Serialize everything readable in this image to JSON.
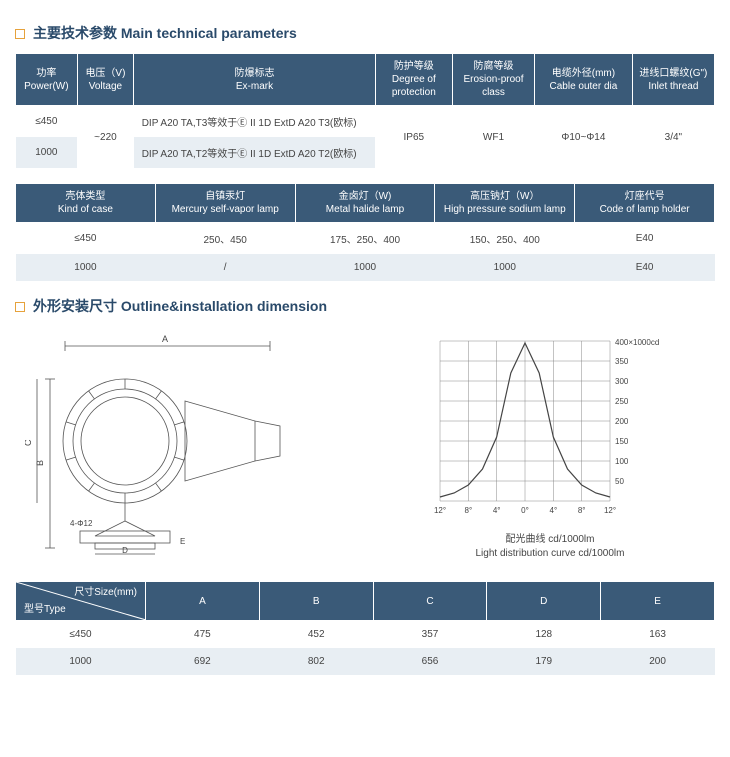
{
  "section1_title": "主要技术参数 Main technical parameters",
  "section2_title": "外形安装尺寸 Outline&installation dimension",
  "table1": {
    "headers": [
      "功率\nPower(W)",
      "电压（V)\nVoltage",
      "防爆标志\nEx-mark",
      "防护等级\nDegree of protection",
      "防腐等级\nErosion-proof class",
      "电缆外径(mm)\nCable outer dia",
      "进线口螺纹(G\")\nInlet thread"
    ],
    "rows": [
      [
        "≤450",
        "~220",
        "DIP A20 TA,T3等效于Ⓔ II 1D ExtD A20 T3(欧标)",
        "IP65",
        "WF1",
        "Φ10~Φ14",
        "3/4\""
      ],
      [
        "1000",
        "",
        "DIP A20 TA,T2等效于Ⓔ II 1D ExtD A20 T2(欧标)",
        "",
        "",
        "",
        ""
      ]
    ]
  },
  "table2": {
    "headers": [
      "壳体类型\nKind of case",
      "自镇汞灯\nMercury self-vapor lamp",
      "金卤灯（W)\nMetal halide lamp",
      "高压钠灯（W）\nHigh pressure sodium lamp",
      "灯座代号\nCode of lamp holder"
    ],
    "rows": [
      [
        "≤450",
        "250、450",
        "175、250、400",
        "150、250、400",
        "E40"
      ],
      [
        "1000",
        "/",
        "1000",
        "1000",
        "E40"
      ]
    ]
  },
  "table3": {
    "size_label": "尺寸Size(mm)",
    "type_label": "型号Type",
    "cols": [
      "A",
      "B",
      "C",
      "D",
      "E"
    ],
    "rows": [
      [
        "≤450",
        "475",
        "452",
        "357",
        "128",
        "163"
      ],
      [
        "1000",
        "692",
        "802",
        "656",
        "179",
        "200"
      ]
    ]
  },
  "outline_diagram": {
    "labels": {
      "A": "A",
      "B": "B",
      "C": "C",
      "holes": "4-Φ12",
      "D": "D",
      "E": "E"
    }
  },
  "light_curve": {
    "caption_cn": "配光曲线 cd/1000lm",
    "caption_en": "Light distribution curve cd/1000lm",
    "y_max_label": "400×1000cd",
    "y_ticks": [
      "350",
      "300",
      "250",
      "200",
      "150",
      "100",
      "50"
    ],
    "x_ticks": [
      "12°",
      "8°",
      "4°",
      "0°",
      "4°",
      "8°",
      "12°"
    ],
    "points": [
      [
        -12,
        10
      ],
      [
        -10,
        20
      ],
      [
        -8,
        40
      ],
      [
        -6,
        80
      ],
      [
        -4,
        160
      ],
      [
        -2,
        320
      ],
      [
        0,
        395
      ],
      [
        2,
        320
      ],
      [
        4,
        160
      ],
      [
        6,
        80
      ],
      [
        8,
        40
      ],
      [
        10,
        20
      ],
      [
        12,
        10
      ]
    ],
    "colors": {
      "grid": "#888",
      "curve": "#444",
      "text": "#444"
    }
  }
}
